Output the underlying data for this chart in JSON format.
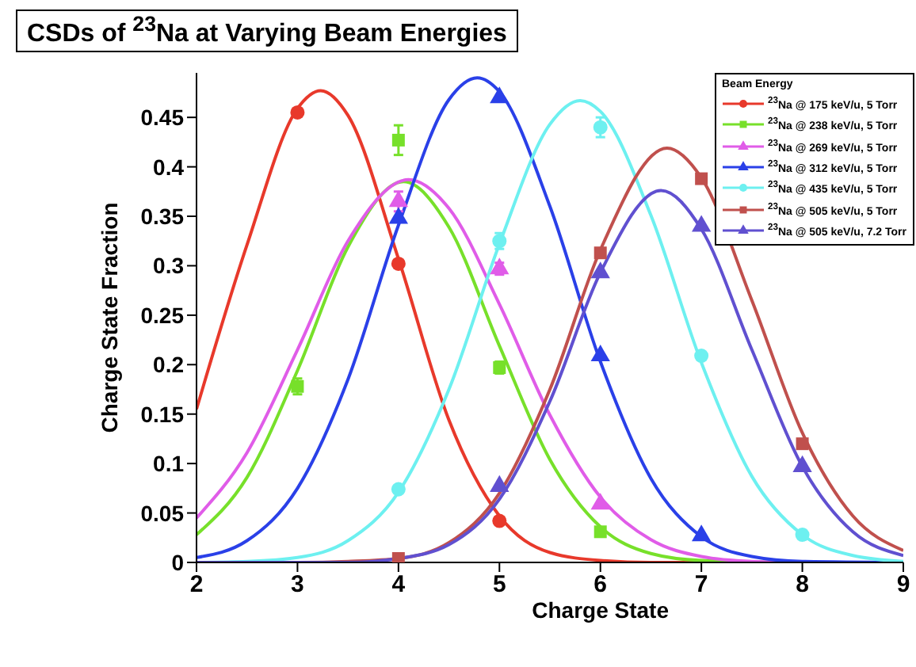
{
  "chart_data": {
    "type": "line",
    "title": "CSDs of $^{23}$Na at Varying Beam Energies",
    "xlabel": "Charge State",
    "ylabel": "Charge State Fraction",
    "legend_title": "Beam Energy",
    "legend": "top right",
    "grid": false,
    "xlim": [
      2,
      9
    ],
    "xticks": [
      2,
      3,
      4,
      5,
      6,
      7,
      8,
      9
    ],
    "ylim": [
      0,
      0.495
    ],
    "yticks": [
      0,
      0.05,
      0.1,
      0.15,
      0.2,
      0.25,
      0.3,
      0.35,
      0.4,
      0.45
    ],
    "series": [
      {
        "color": "#e8392b",
        "marker": "none",
        "x": [
          2,
          2.5,
          3,
          3.23,
          3.5,
          4,
          4.5,
          5,
          5.5,
          6,
          6.5,
          7,
          8,
          9
        ],
        "values": [
          0.155,
          0.321,
          0.459,
          0.477,
          0.452,
          0.307,
          0.144,
          0.047,
          0.01,
          0.002,
          0,
          0,
          0,
          0
        ]
      },
      {
        "color": "#77e02a",
        "marker": "none",
        "x": [
          2,
          2.5,
          3,
          3.5,
          4.05,
          4.5,
          5,
          5.5,
          6,
          6.5,
          7,
          8,
          9
        ],
        "values": [
          0.028,
          0.086,
          0.194,
          0.319,
          0.385,
          0.339,
          0.219,
          0.104,
          0.036,
          0.009,
          0.002,
          0,
          0
        ]
      },
      {
        "color": "#e05ce8",
        "marker": "none",
        "x": [
          2,
          2.5,
          3,
          3.5,
          4.1,
          4.5,
          5,
          5.5,
          6,
          6.5,
          7,
          7.5,
          8,
          9
        ],
        "values": [
          0.045,
          0.111,
          0.215,
          0.325,
          0.387,
          0.358,
          0.261,
          0.149,
          0.066,
          0.023,
          0.006,
          0.001,
          0,
          0
        ]
      },
      {
        "color": "#2a40e8",
        "marker": "none",
        "x": [
          2,
          2.5,
          3,
          3.5,
          4,
          4.5,
          4.78,
          5,
          5.5,
          6,
          6.5,
          7,
          7.5,
          8,
          9
        ],
        "values": [
          0.005,
          0.022,
          0.075,
          0.185,
          0.341,
          0.468,
          0.49,
          0.476,
          0.36,
          0.203,
          0.085,
          0.026,
          0.006,
          0.001,
          0
        ]
      },
      {
        "color": "#6df0f0",
        "marker": "none",
        "x": [
          2,
          2.5,
          3,
          3.5,
          4,
          4.5,
          5,
          5.5,
          5.8,
          6,
          6.5,
          7,
          7.5,
          8,
          8.5,
          9
        ],
        "values": [
          0,
          0.001,
          0.005,
          0.022,
          0.071,
          0.175,
          0.322,
          0.443,
          0.467,
          0.456,
          0.351,
          0.202,
          0.087,
          0.028,
          0.007,
          0.001
        ]
      },
      {
        "color": "#c0504d",
        "marker": "none",
        "x": [
          2,
          3,
          3.5,
          4,
          4.5,
          5,
          5.5,
          6,
          6.66,
          7,
          7.5,
          8,
          8.5,
          9
        ],
        "values": [
          0,
          0,
          0.001,
          0.004,
          0.02,
          0.07,
          0.175,
          0.316,
          0.419,
          0.389,
          0.265,
          0.131,
          0.047,
          0.012
        ]
      },
      {
        "color": "#6050d0",
        "marker": "none",
        "x": [
          2,
          3.5,
          4,
          4.5,
          5,
          5.5,
          6,
          6.6,
          7,
          7.5,
          8,
          8.5,
          9
        ],
        "values": [
          0,
          0,
          0.004,
          0.018,
          0.064,
          0.163,
          0.293,
          0.376,
          0.337,
          0.215,
          0.097,
          0.031,
          0.007
        ]
      },
      {
        "type": "scatter",
        "name": "$^{23}$Na @ 175 keV/u, 5 Torr",
        "color": "#e8392b",
        "marker": "circle",
        "x": [
          3,
          4,
          5
        ],
        "values": [
          0.455,
          0.302,
          0.042
        ]
      },
      {
        "type": "scatter",
        "name": "$^{23}$Na @ 238 keV/u, 5 Torr",
        "color": "#77e02a",
        "marker": "square",
        "x": [
          3,
          4,
          5,
          6
        ],
        "values": [
          0.178,
          0.427,
          0.197,
          0.031
        ],
        "errors": [
          0.008,
          0.015,
          0.006,
          null
        ]
      },
      {
        "type": "scatter",
        "name": "$^{23}$Na @ 269 keV/u, 5 Torr",
        "color": "#e05ce8",
        "marker": "triangle",
        "x": [
          4,
          5,
          6
        ],
        "values": [
          0.365,
          0.297,
          0.059
        ],
        "errors": [
          0.01,
          0.006,
          null
        ]
      },
      {
        "type": "scatter",
        "name": "$^{23}$Na @ 312 keV/u, 5 Torr",
        "color": "#2a40e8",
        "marker": "triangle",
        "x": [
          4,
          5,
          6,
          7
        ],
        "values": [
          0.348,
          0.47,
          0.209,
          0.027
        ]
      },
      {
        "type": "scatter",
        "name": "$^{23}$Na @ 435 keV/u, 5 Torr",
        "color": "#6df0f0",
        "marker": "circle",
        "x": [
          4,
          5,
          6,
          7,
          8
        ],
        "values": [
          0.074,
          0.325,
          0.44,
          0.209,
          0.028
        ],
        "errors": [
          null,
          0.008,
          0.01,
          null,
          null
        ]
      },
      {
        "type": "scatter",
        "name": "$^{23}$Na @ 505 keV/u, 5 Torr",
        "color": "#c0504d",
        "marker": "square",
        "x": [
          4,
          6,
          7,
          8
        ],
        "values": [
          0.004,
          0.313,
          0.388,
          0.12
        ]
      },
      {
        "type": "scatter",
        "name": "$^{23}$Na @ 505 keV/u, 7.2 Torr",
        "color": "#6050d0",
        "marker": "triangle",
        "x": [
          5,
          6,
          7,
          8
        ],
        "values": [
          0.077,
          0.293,
          0.34,
          0.097
        ]
      }
    ]
  }
}
